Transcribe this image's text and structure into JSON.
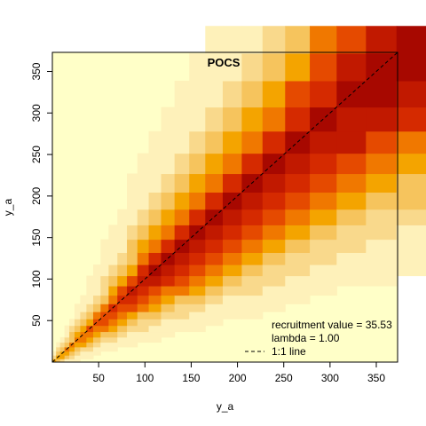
{
  "chart_data": {
    "type": "heatmap",
    "title": "POCS",
    "xlabel": "y_a",
    "ylabel": "y_a",
    "xlim": [
      0,
      373
    ],
    "ylim": [
      0,
      373
    ],
    "x_ticks": [
      50,
      100,
      150,
      200,
      250,
      300,
      350
    ],
    "y_ticks": [
      50,
      100,
      150,
      200,
      250,
      300,
      350
    ],
    "colors": [
      "#FFFFC8",
      "#FEF1BA",
      "#F9D98C",
      "#F6C45D",
      "#F4A400",
      "#F07800",
      "#E54A00",
      "#D52A00",
      "#C11900",
      "#A70800"
    ],
    "legend": {
      "items": [
        {
          "text": "recruitment value = 35.53",
          "symbol": "none"
        },
        {
          "text": "lambda = 1.00",
          "symbol": "none"
        },
        {
          "text": "1:1 line",
          "symbol": "dashed"
        }
      ],
      "position": "bottom-right"
    },
    "reference_line": {
      "type": "1:1",
      "style": "dashed",
      "color": "#000000"
    }
  }
}
